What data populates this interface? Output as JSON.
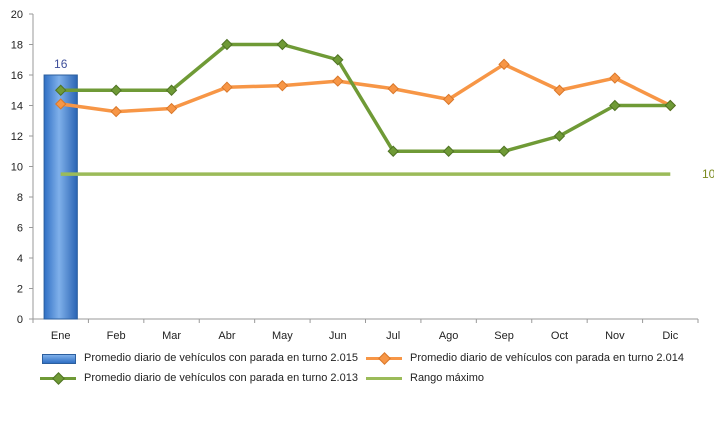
{
  "chart_data": {
    "type": "line",
    "categories": [
      "Ene",
      "Feb",
      "Mar",
      "Abr",
      "May",
      "Jun",
      "Jul",
      "Ago",
      "Sep",
      "Oct",
      "Nov",
      "Dic"
    ],
    "ylim": [
      0,
      20
    ],
    "yticks": [
      0,
      2,
      4,
      6,
      8,
      10,
      12,
      14,
      16,
      18,
      20
    ],
    "grid": false,
    "legend_position": "bottom",
    "series": [
      {
        "name": "Promedio diario de vehículos con parada en turno 2.015",
        "type": "bar",
        "color": "#3a7bd0",
        "values": [
          16,
          null,
          null,
          null,
          null,
          null,
          null,
          null,
          null,
          null,
          null,
          null
        ],
        "data_label": "16"
      },
      {
        "name": "Promedio diario de vehículos con parada en turno 2.014",
        "type": "line",
        "color": "#f79646",
        "values": [
          14.1,
          13.6,
          13.8,
          15.2,
          15.3,
          15.6,
          15.1,
          14.4,
          16.7,
          15.0,
          15.8,
          14.0
        ]
      },
      {
        "name": "Promedio diario de vehículos con parada en turno 2.013",
        "type": "line",
        "color": "#6f9a36",
        "values": [
          15,
          15,
          15,
          18,
          18,
          17,
          11,
          11,
          11,
          12,
          14,
          14
        ]
      },
      {
        "name": "Rango máximo",
        "type": "line",
        "color": "#9bbb59",
        "values": [
          9.5,
          9.5,
          9.5,
          9.5,
          9.5,
          9.5,
          9.5,
          9.5,
          9.5,
          9.5,
          9.5,
          9.5
        ],
        "data_label": "10"
      }
    ]
  }
}
